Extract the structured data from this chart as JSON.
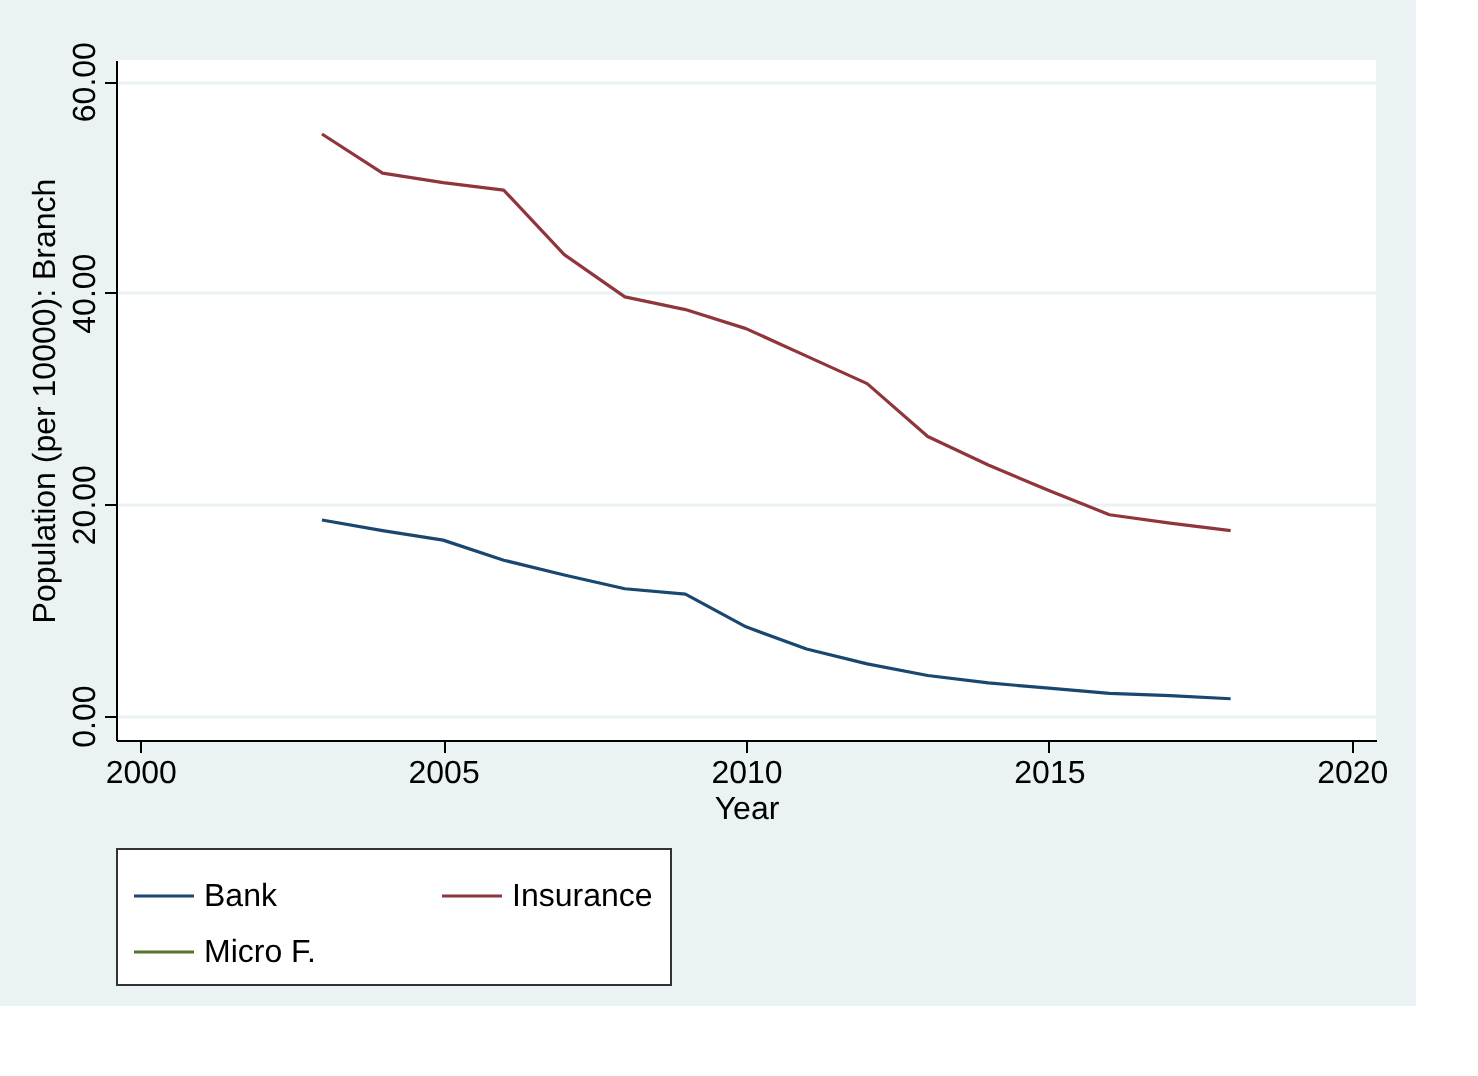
{
  "chart_data": {
    "type": "line",
    "xlabel": "Year",
    "ylabel": "Population (per 10000): Branch",
    "x": [
      2003,
      2004,
      2005,
      2006,
      2007,
      2008,
      2009,
      2010,
      2011,
      2012,
      2013,
      2014,
      2015,
      2016,
      2017,
      2018
    ],
    "series": [
      {
        "name": "Bank",
        "color": "#1a476f",
        "values": [
          18.5,
          17.5,
          16.6,
          14.7,
          13.3,
          12.0,
          11.5,
          8.4,
          6.3,
          4.9,
          3.8,
          3.1,
          2.6,
          2.1,
          1.9,
          1.6
        ]
      },
      {
        "name": "Insurance",
        "color": "#90353b",
        "values": [
          55.0,
          51.3,
          50.4,
          49.7,
          43.6,
          39.6,
          38.4,
          36.6,
          34.0,
          31.4,
          26.4,
          23.7,
          21.3,
          19.0,
          18.2,
          17.5
        ]
      },
      {
        "name": "Micro F.",
        "color": "#55752f",
        "values": [
          null,
          null,
          null,
          null,
          null,
          null,
          null,
          null,
          null,
          null,
          null,
          null,
          null,
          null,
          null,
          null
        ]
      }
    ],
    "xlim": [
      1999.6,
      2020.4
    ],
    "xticks": [
      2000,
      2005,
      2010,
      2015,
      2020
    ],
    "ylim": [
      -2.3,
      62
    ],
    "yticks": [
      {
        "value": 0,
        "label": "0.00"
      },
      {
        "value": 20,
        "label": "20.00"
      },
      {
        "value": 40,
        "label": "40.00"
      },
      {
        "value": 60,
        "label": "60.00"
      }
    ],
    "grid": "y",
    "legend": "bottom",
    "marker": "none",
    "line_style": "solid"
  }
}
